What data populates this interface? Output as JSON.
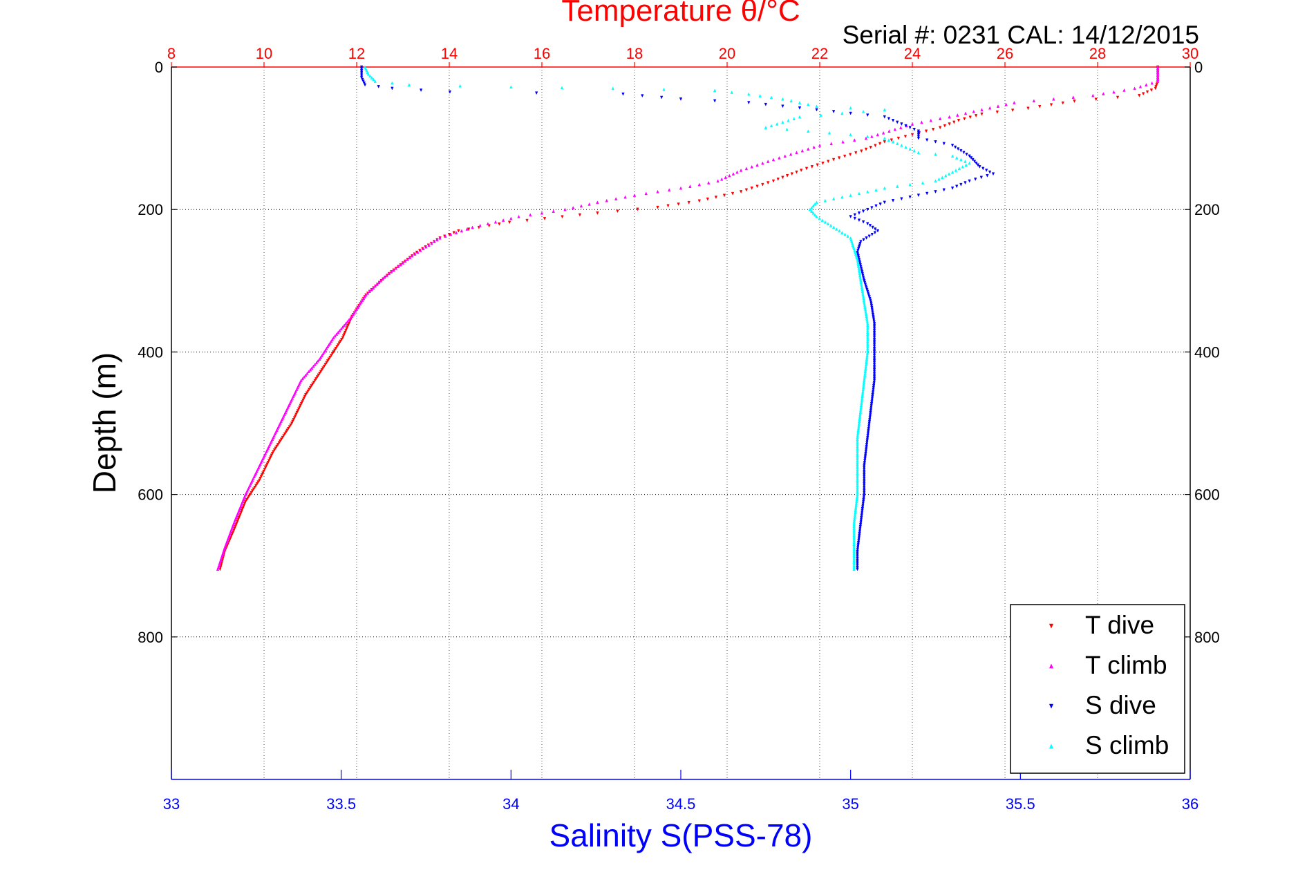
{
  "chart_data": {
    "type": "scatter",
    "title": "Temperature θ/°C",
    "subtitle": "Serial #: 0231  CAL: 14/12/2015",
    "ylabel": "Depth (m)",
    "xlabel": "Salinity S(PSS-78)",
    "temperature_axis": {
      "range": [
        8,
        30
      ],
      "ticks": [
        8,
        10,
        12,
        14,
        16,
        18,
        20,
        22,
        24,
        26,
        28,
        30
      ],
      "color": "#ff0000"
    },
    "salinity_axis": {
      "range": [
        33,
        36
      ],
      "ticks": [
        33,
        33.5,
        34,
        34.5,
        35,
        35.5,
        36
      ],
      "tick_labels": [
        "33",
        "33.5",
        "34",
        "34.5",
        "35",
        "35.5",
        "36"
      ],
      "color": "#0000ff"
    },
    "depth_axis": {
      "range": [
        0,
        1000
      ],
      "reversed": true,
      "ticks": [
        0,
        200,
        400,
        600,
        800
      ]
    },
    "grid": true,
    "legend_position": "bottom-right",
    "series": [
      {
        "name": "T dive",
        "axis": "temperature",
        "color": "#ff0000",
        "marker": "triangle-down",
        "points": [
          [
            29.3,
            0
          ],
          [
            29.3,
            10
          ],
          [
            29.3,
            20
          ],
          [
            29.25,
            30
          ],
          [
            28.9,
            40
          ],
          [
            27.5,
            48
          ],
          [
            26.5,
            58
          ],
          [
            25.5,
            66
          ],
          [
            25.0,
            75
          ],
          [
            24.6,
            85
          ],
          [
            24.0,
            95
          ],
          [
            23.4,
            105
          ],
          [
            22.9,
            118
          ],
          [
            22.3,
            130
          ],
          [
            21.6,
            145
          ],
          [
            21.0,
            160
          ],
          [
            20.3,
            175
          ],
          [
            19.4,
            188
          ],
          [
            18.5,
            197
          ],
          [
            17.2,
            205
          ],
          [
            15.3,
            218
          ],
          [
            14.2,
            230
          ],
          [
            13.8,
            240
          ],
          [
            13.3,
            260
          ],
          [
            12.7,
            290
          ],
          [
            12.2,
            320
          ],
          [
            11.9,
            350
          ],
          [
            11.7,
            380
          ],
          [
            11.5,
            400
          ],
          [
            11.2,
            430
          ],
          [
            10.9,
            460
          ],
          [
            10.6,
            500
          ],
          [
            10.2,
            540
          ],
          [
            9.9,
            580
          ],
          [
            9.6,
            610
          ],
          [
            9.35,
            650
          ],
          [
            9.15,
            680
          ],
          [
            9.05,
            705
          ]
        ]
      },
      {
        "name": "T climb",
        "axis": "temperature",
        "color": "#ff00ff",
        "marker": "triangle-up",
        "points": [
          [
            29.3,
            0
          ],
          [
            29.3,
            10
          ],
          [
            29.3,
            20
          ],
          [
            28.8,
            30
          ],
          [
            27.9,
            40
          ],
          [
            26.2,
            50
          ],
          [
            25.5,
            60
          ],
          [
            24.8,
            70
          ],
          [
            24.0,
            80
          ],
          [
            23.5,
            90
          ],
          [
            23.0,
            100
          ],
          [
            22.0,
            110
          ],
          [
            21.5,
            120
          ],
          [
            21.0,
            130
          ],
          [
            20.3,
            145
          ],
          [
            19.8,
            160
          ],
          [
            19.0,
            170
          ],
          [
            18.0,
            180
          ],
          [
            17.2,
            190
          ],
          [
            16.5,
            200
          ],
          [
            15.5,
            210
          ],
          [
            14.5,
            225
          ],
          [
            13.8,
            240
          ],
          [
            13.2,
            265
          ],
          [
            12.6,
            295
          ],
          [
            12.2,
            320
          ],
          [
            11.9,
            350
          ],
          [
            11.5,
            380
          ],
          [
            11.2,
            410
          ],
          [
            10.8,
            440
          ],
          [
            10.5,
            480
          ],
          [
            10.2,
            520
          ],
          [
            9.9,
            560
          ],
          [
            9.6,
            600
          ],
          [
            9.35,
            640
          ],
          [
            9.15,
            675
          ],
          [
            9.0,
            705
          ]
        ]
      },
      {
        "name": "S dive",
        "axis": "salinity",
        "color": "#0000ff",
        "marker": "triangle-down",
        "points": [
          [
            33.56,
            0
          ],
          [
            33.56,
            15
          ],
          [
            33.57,
            25
          ],
          [
            33.65,
            30
          ],
          [
            33.82,
            35
          ],
          [
            34.33,
            38
          ],
          [
            34.5,
            45
          ],
          [
            34.7,
            50
          ],
          [
            34.9,
            60
          ],
          [
            35.1,
            70
          ],
          [
            35.15,
            80
          ],
          [
            35.2,
            90
          ],
          [
            35.2,
            100
          ],
          [
            35.3,
            110
          ],
          [
            35.35,
            125
          ],
          [
            35.38,
            140
          ],
          [
            35.42,
            150
          ],
          [
            35.35,
            160
          ],
          [
            35.3,
            170
          ],
          [
            35.2,
            180
          ],
          [
            35.1,
            190
          ],
          [
            35.05,
            200
          ],
          [
            35.0,
            210
          ],
          [
            35.05,
            220
          ],
          [
            35.08,
            230
          ],
          [
            35.03,
            245
          ],
          [
            35.02,
            260
          ],
          [
            35.03,
            280
          ],
          [
            35.04,
            300
          ],
          [
            35.06,
            330
          ],
          [
            35.07,
            360
          ],
          [
            35.07,
            400
          ],
          [
            35.07,
            440
          ],
          [
            35.06,
            480
          ],
          [
            35.05,
            520
          ],
          [
            35.04,
            560
          ],
          [
            35.04,
            600
          ],
          [
            35.03,
            640
          ],
          [
            35.02,
            680
          ],
          [
            35.02,
            705
          ]
        ]
      },
      {
        "name": "S climb",
        "axis": "salinity",
        "color": "#00ffff",
        "marker": "triangle-up",
        "points": [
          [
            33.57,
            0
          ],
          [
            33.58,
            10
          ],
          [
            33.6,
            20
          ],
          [
            33.7,
            25
          ],
          [
            34.0,
            28
          ],
          [
            34.3,
            30
          ],
          [
            34.6,
            33
          ],
          [
            34.7,
            38
          ],
          [
            34.8,
            45
          ],
          [
            34.9,
            55
          ],
          [
            35.1,
            60
          ],
          [
            34.85,
            70
          ],
          [
            34.75,
            85
          ],
          [
            35.0,
            95
          ],
          [
            35.1,
            100
          ],
          [
            35.15,
            110
          ],
          [
            35.2,
            120
          ],
          [
            35.3,
            125
          ],
          [
            35.35,
            135
          ],
          [
            35.25,
            160
          ],
          [
            35.1,
            170
          ],
          [
            35.0,
            180
          ],
          [
            34.9,
            190
          ],
          [
            34.88,
            200
          ],
          [
            34.9,
            210
          ],
          [
            34.95,
            225
          ],
          [
            35.0,
            240
          ],
          [
            35.02,
            270
          ],
          [
            35.03,
            300
          ],
          [
            35.04,
            330
          ],
          [
            35.05,
            360
          ],
          [
            35.05,
            400
          ],
          [
            35.04,
            440
          ],
          [
            35.03,
            480
          ],
          [
            35.02,
            520
          ],
          [
            35.02,
            560
          ],
          [
            35.02,
            600
          ],
          [
            35.01,
            640
          ],
          [
            35.01,
            680
          ],
          [
            35.01,
            705
          ]
        ]
      }
    ]
  }
}
